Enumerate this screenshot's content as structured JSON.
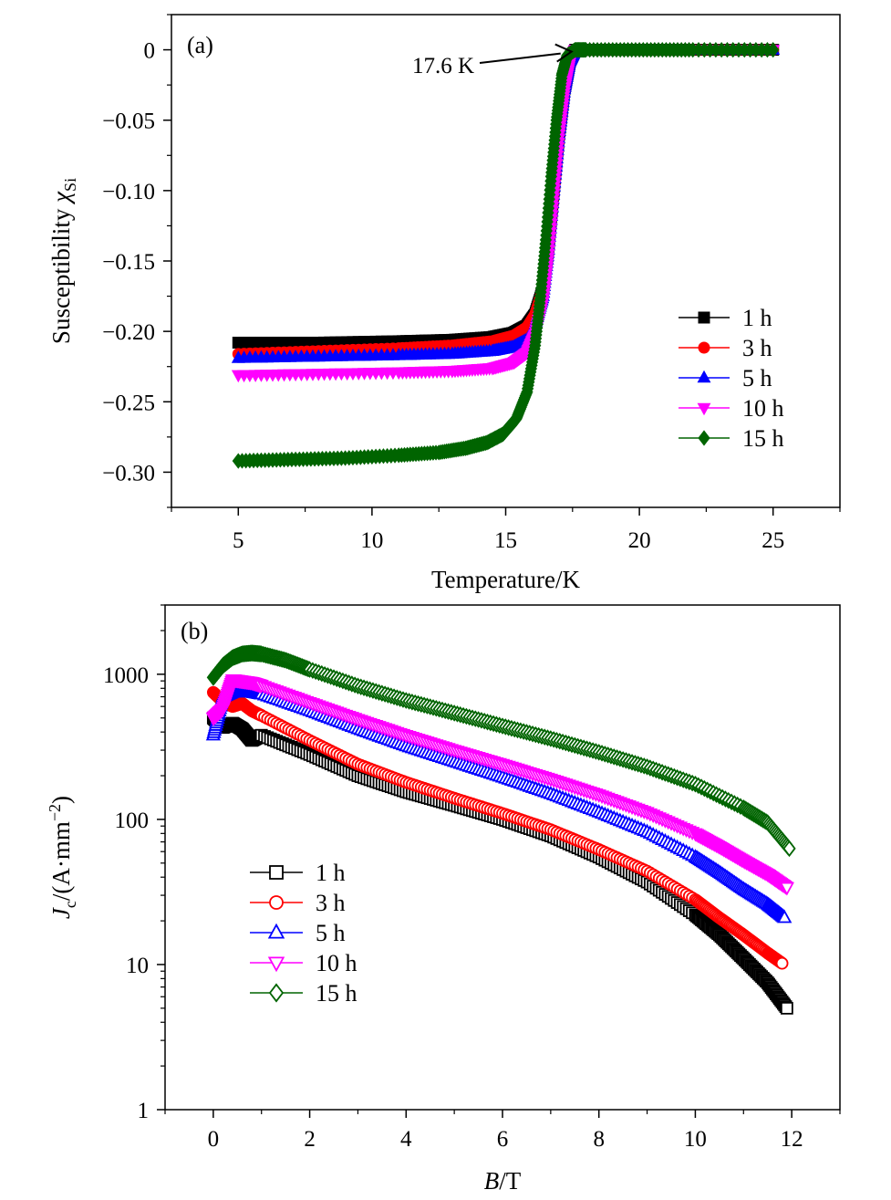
{
  "chart_data": [
    {
      "type": "scatter",
      "panel_label": "(a)",
      "xlabel": "Temperature/K",
      "ylabel": "Susceptibility",
      "ylabel_symbol": "χ",
      "ylabel_subscript": "Si",
      "xlim": [
        2.5,
        27.5
      ],
      "ylim": [
        -0.325,
        0.025
      ],
      "xticks": [
        5,
        10,
        15,
        20,
        25
      ],
      "xtick_labels": [
        "5",
        "10",
        "15",
        "20",
        "25"
      ],
      "yticks": [
        0,
        -0.05,
        -0.1,
        -0.15,
        -0.2,
        -0.25,
        -0.3
      ],
      "ytick_labels": [
        "0",
        "−0.05",
        "−0.10",
        "−0.15",
        "−0.20",
        "−0.25",
        "−0.30"
      ],
      "grid": false,
      "legend_position": "right",
      "annotation": {
        "text": "17.6 K",
        "x": 17.6,
        "y": 0.0
      },
      "series": [
        {
          "name": "1 h",
          "color": "#000000",
          "marker": "square-filled",
          "x": [
            5,
            8,
            11,
            13,
            14.5,
            15.3,
            15.8,
            16.1,
            16.4,
            16.6,
            16.8,
            17.0,
            17.2,
            17.4,
            17.6,
            18,
            20,
            22,
            25
          ],
          "y": [
            -0.208,
            -0.208,
            -0.207,
            -0.206,
            -0.204,
            -0.201,
            -0.196,
            -0.188,
            -0.17,
            -0.14,
            -0.1,
            -0.06,
            -0.028,
            -0.008,
            0,
            0,
            0,
            0,
            0
          ]
        },
        {
          "name": "3 h",
          "color": "#ff0000",
          "marker": "circle-filled",
          "x": [
            5,
            8,
            11,
            13,
            14.5,
            15.3,
            15.8,
            16.1,
            16.4,
            16.6,
            16.8,
            17.0,
            17.2,
            17.4,
            17.6,
            18,
            20,
            22,
            25
          ],
          "y": [
            -0.216,
            -0.214,
            -0.212,
            -0.21,
            -0.207,
            -0.203,
            -0.197,
            -0.188,
            -0.17,
            -0.14,
            -0.1,
            -0.06,
            -0.028,
            -0.008,
            0,
            0,
            0,
            0,
            0
          ]
        },
        {
          "name": "5 h",
          "color": "#0000ff",
          "marker": "triangle-up-filled",
          "x": [
            5,
            8,
            11,
            13,
            14.5,
            15.3,
            15.8,
            16.1,
            16.4,
            16.6,
            16.8,
            17.0,
            17.2,
            17.4,
            17.6,
            18,
            20,
            22,
            25
          ],
          "y": [
            -0.219,
            -0.218,
            -0.217,
            -0.216,
            -0.214,
            -0.211,
            -0.206,
            -0.196,
            -0.175,
            -0.142,
            -0.1,
            -0.06,
            -0.028,
            -0.008,
            0,
            0,
            0,
            0,
            0
          ]
        },
        {
          "name": "10 h",
          "color": "#ff00ff",
          "marker": "triangle-down-filled",
          "x": [
            5,
            8,
            11,
            13,
            14.5,
            15.3,
            15.8,
            16.1,
            16.4,
            16.6,
            16.8,
            17.0,
            17.2,
            17.4,
            17.6,
            18,
            20,
            22,
            25
          ],
          "y": [
            -0.231,
            -0.23,
            -0.229,
            -0.228,
            -0.226,
            -0.222,
            -0.215,
            -0.202,
            -0.178,
            -0.145,
            -0.102,
            -0.06,
            -0.028,
            -0.008,
            0,
            0,
            0,
            0,
            0
          ]
        },
        {
          "name": "15 h",
          "color": "#006400",
          "marker": "diamond-filled",
          "x": [
            5,
            7,
            9,
            11,
            12.5,
            13.5,
            14.3,
            14.9,
            15.4,
            15.8,
            16.1,
            16.3,
            16.5,
            16.7,
            16.9,
            17.1,
            17.3,
            17.6,
            18,
            20,
            22,
            25
          ],
          "y": [
            -0.292,
            -0.291,
            -0.29,
            -0.288,
            -0.286,
            -0.283,
            -0.279,
            -0.273,
            -0.262,
            -0.243,
            -0.21,
            -0.175,
            -0.135,
            -0.09,
            -0.05,
            -0.018,
            -0.004,
            0,
            0,
            0,
            0,
            0
          ]
        }
      ]
    },
    {
      "type": "scatter",
      "panel_label": "(b)",
      "xlabel_symbol": "B",
      "xlabel_unit": "/T",
      "ylabel_symbol": "J",
      "ylabel_subscript": "c",
      "ylabel_unit": "/(A·mm",
      "ylabel_exponent": "−2",
      "ylabel_close": ")",
      "xlim": [
        -1,
        13
      ],
      "ylim": [
        1,
        3000
      ],
      "yscale": "log",
      "xticks": [
        0,
        2,
        4,
        6,
        8,
        10,
        12
      ],
      "xtick_labels": [
        "0",
        "2",
        "4",
        "6",
        "8",
        "10",
        "12"
      ],
      "yticks": [
        1,
        10,
        100,
        1000
      ],
      "ytick_labels": [
        "1",
        "10",
        "100",
        "1000"
      ],
      "grid": false,
      "legend_position": "lower-left",
      "series": [
        {
          "name": "1 h",
          "color": "#000000",
          "marker": "square-open",
          "x": [
            0,
            0.2,
            0.4,
            0.6,
            0.8,
            1,
            2,
            3,
            4,
            5,
            6,
            7,
            8,
            9,
            10,
            10.5,
            11,
            11.5,
            11.9
          ],
          "y": [
            500,
            430,
            460,
            420,
            350,
            380,
            280,
            200,
            155,
            125,
            100,
            77,
            55,
            37,
            22,
            16,
            11,
            7.5,
            5
          ]
        },
        {
          "name": "3 h",
          "color": "#ff0000",
          "marker": "circle-open",
          "x": [
            0,
            0.2,
            0.4,
            0.6,
            0.8,
            1,
            2,
            3,
            4,
            5,
            6,
            7,
            8,
            9,
            10,
            10.5,
            11,
            11.5,
            11.8
          ],
          "y": [
            750,
            650,
            600,
            630,
            560,
            520,
            350,
            240,
            180,
            140,
            110,
            85,
            62,
            44,
            28,
            21,
            16,
            12,
            10.2
          ]
        },
        {
          "name": "5 h",
          "color": "#0000ff",
          "marker": "triangle-up-open",
          "x": [
            0,
            0.2,
            0.4,
            0.6,
            0.8,
            1,
            2,
            3,
            4,
            5,
            6,
            7,
            8,
            9,
            10,
            10.5,
            11,
            11.5,
            11.85
          ],
          "y": [
            380,
            700,
            750,
            760,
            750,
            730,
            560,
            420,
            320,
            250,
            195,
            150,
            112,
            82,
            55,
            43,
            33,
            26,
            21
          ]
        },
        {
          "name": "10 h",
          "color": "#ff00ff",
          "marker": "triangle-down-open",
          "x": [
            0,
            0.2,
            0.4,
            0.6,
            0.8,
            1,
            2,
            3,
            4,
            5,
            6,
            7,
            8,
            9,
            10,
            10.5,
            11,
            11.5,
            11.9
          ],
          "y": [
            500,
            580,
            920,
            900,
            880,
            840,
            640,
            490,
            380,
            300,
            240,
            190,
            148,
            112,
            80,
            65,
            52,
            42,
            34
          ]
        },
        {
          "name": "15 h",
          "color": "#006400",
          "marker": "diamond-open",
          "x": [
            0,
            0.2,
            0.4,
            0.6,
            0.8,
            1,
            1.5,
            2,
            3,
            4,
            5,
            6,
            7,
            8,
            9,
            10,
            11,
            11.5,
            11.95
          ],
          "y": [
            950,
            1150,
            1300,
            1380,
            1400,
            1380,
            1250,
            1080,
            830,
            660,
            540,
            440,
            360,
            290,
            230,
            175,
            120,
            95,
            63
          ]
        }
      ]
    }
  ]
}
